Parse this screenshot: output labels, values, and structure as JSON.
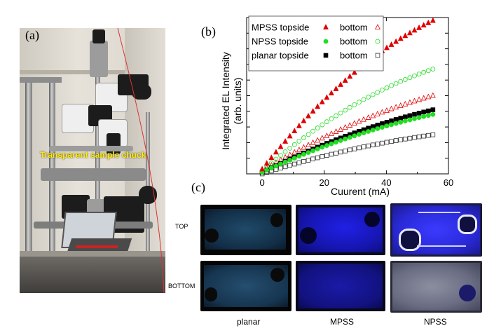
{
  "figure": {
    "panel_a": {
      "label": "(a)",
      "photo_annotation": "Transparent sample chuck"
    },
    "panel_b": {
      "label": "(b)"
    },
    "panel_c": {
      "label": "(c)",
      "row_labels": [
        "TOP",
        "BOTTOM"
      ],
      "column_labels": [
        "planar",
        "MPSS",
        "NPSS"
      ]
    }
  },
  "chart_data": {
    "type": "scatter",
    "xlabel": "Cuurent (mA)",
    "ylabel": "Integrated EL Intensity\n(arb. units)",
    "ylabel_line1": "Integrated EL Intensity",
    "ylabel_line2": "(arb. units)",
    "xlim": [
      -5,
      60
    ],
    "ylim": [
      0,
      100
    ],
    "xticks": [
      "0",
      "20",
      "40",
      "60"
    ],
    "legend_position": "top-left",
    "legend_rows": [
      {
        "label": "MPSS topside",
        "second_label": "bottom"
      },
      {
        "label": "NPSS topside",
        "second_label": "bottom"
      },
      {
        "label": "planar topside",
        "second_label": "bottom"
      }
    ],
    "series": [
      {
        "name": "MPSS topside",
        "marker": "filled-triangle",
        "color": "#e00000",
        "x_start": 0,
        "x_end": 55,
        "y_start": 3,
        "y_end": 98,
        "curvature": 0.22
      },
      {
        "name": "MPSS bottom",
        "marker": "open-triangle",
        "color": "#e00000",
        "x_start": 0,
        "x_end": 55,
        "y_start": 2,
        "y_end": 50,
        "curvature": 0.18
      },
      {
        "name": "NPSS topside",
        "marker": "filled-circle",
        "color": "#22dd22",
        "x_start": 0,
        "x_end": 55,
        "y_start": 1,
        "y_end": 38,
        "curvature": 0.18
      },
      {
        "name": "NPSS bottom",
        "marker": "open-circle",
        "color": "#22dd22",
        "x_start": 0,
        "x_end": 55,
        "y_start": 2,
        "y_end": 67,
        "curvature": 0.22
      },
      {
        "name": "planar topside",
        "marker": "filled-square",
        "color": "#000000",
        "x_start": 0,
        "x_end": 55,
        "y_start": 1,
        "y_end": 41,
        "curvature": 0.18
      },
      {
        "name": "planar bottom",
        "marker": "open-square",
        "color": "#333333",
        "x_start": 0,
        "x_end": 55,
        "y_start": 0,
        "y_end": 25,
        "curvature": 0.2
      }
    ]
  },
  "colors": {
    "mpss": "#e00000",
    "npss": "#22dd22",
    "planar": "#000000",
    "annotation": "#ffeb00"
  }
}
